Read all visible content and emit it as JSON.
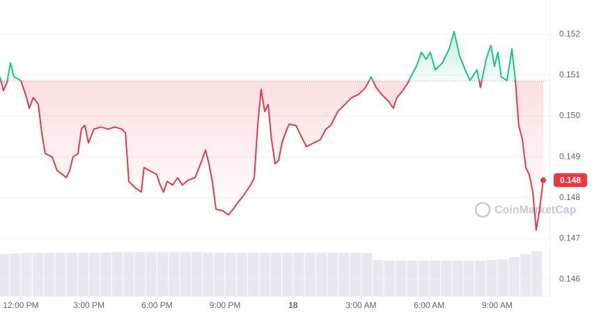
{
  "chart_data": {
    "type": "line",
    "xlim": [
      11.08,
      35.03
    ],
    "xticks": [
      {
        "value": 12,
        "label": "12:00 PM"
      },
      {
        "value": 15,
        "label": "3:00 PM"
      },
      {
        "value": 18,
        "label": "6:00 PM"
      },
      {
        "value": 21,
        "label": "9:00 PM"
      },
      {
        "value": 24,
        "label": "18"
      },
      {
        "value": 27,
        "label": "3:00 AM"
      },
      {
        "value": 30,
        "label": "6:00 AM"
      },
      {
        "value": 33,
        "label": "9:00 AM"
      }
    ],
    "ylim": [
      0.14559,
      0.15284
    ],
    "yticks": [
      0.146,
      0.147,
      0.148,
      0.149,
      0.15,
      0.151,
      0.152
    ],
    "ytick_labels": [
      "0.146",
      "0.147",
      "0.148",
      "0.149",
      "0.150",
      "0.151",
      "0.152"
    ],
    "grid": true,
    "baseline": 0.15086,
    "up_color": "#16c784",
    "down_color": "#ea3943",
    "current_price_label": "0.148",
    "watermark": "CoinMarketCap",
    "x": [
      11.08,
      11.23,
      11.39,
      11.54,
      11.69,
      12.0,
      12.25,
      12.37,
      12.55,
      12.77,
      12.92,
      13.07,
      13.38,
      13.6,
      13.84,
      14.0,
      14.15,
      14.3,
      14.52,
      14.67,
      14.82,
      14.98,
      15.22,
      15.53,
      15.84,
      16.14,
      16.45,
      16.61,
      16.76,
      17.07,
      17.31,
      17.43,
      17.68,
      17.99,
      18.14,
      18.29,
      18.45,
      18.69,
      18.91,
      19.12,
      19.37,
      19.68,
      19.98,
      20.14,
      20.29,
      20.44,
      20.6,
      20.9,
      21.15,
      21.36,
      21.58,
      21.82,
      22.13,
      22.29,
      22.44,
      22.59,
      22.75,
      22.9,
      23.05,
      23.21,
      23.36,
      23.51,
      23.67,
      23.82,
      24.13,
      24.28,
      24.59,
      24.9,
      25.2,
      25.45,
      25.66,
      25.97,
      26.28,
      26.58,
      26.89,
      27.2,
      27.44,
      27.66,
      27.9,
      28.21,
      28.42,
      28.58,
      28.83,
      29.04,
      29.19,
      29.44,
      29.66,
      29.87,
      30.05,
      30.27,
      30.58,
      30.88,
      31.1,
      31.34,
      31.59,
      31.8,
      32.11,
      32.26,
      32.51,
      32.72,
      32.88,
      33.03,
      33.18,
      33.43,
      33.65,
      33.8,
      33.95,
      34.11,
      34.26,
      34.41,
      34.57,
      34.72,
      34.87,
      35.03
    ],
    "values": [
      0.15096,
      0.15062,
      0.15082,
      0.1513,
      0.15096,
      0.15087,
      0.15045,
      0.15019,
      0.15045,
      0.15028,
      0.14959,
      0.14908,
      0.149,
      0.14866,
      0.14857,
      0.14849,
      0.14866,
      0.149,
      0.14908,
      0.14968,
      0.14977,
      0.14934,
      0.14968,
      0.14973,
      0.14968,
      0.14973,
      0.14968,
      0.14959,
      0.1484,
      0.14823,
      0.14814,
      0.14874,
      0.14866,
      0.14857,
      0.14831,
      0.14814,
      0.1484,
      0.14831,
      0.14849,
      0.14831,
      0.14843,
      0.14849,
      0.14891,
      0.14917,
      0.14883,
      0.1484,
      0.14772,
      0.14768,
      0.14758,
      0.14772,
      0.14789,
      0.14806,
      0.14831,
      0.14849,
      0.14977,
      0.15065,
      0.15011,
      0.15028,
      0.14942,
      0.14883,
      0.14891,
      0.14934,
      0.14959,
      0.1498,
      0.14977,
      0.14959,
      0.14925,
      0.14934,
      0.14942,
      0.14968,
      0.14977,
      0.15011,
      0.15028,
      0.15045,
      0.15053,
      0.1507,
      0.15096,
      0.1507,
      0.15053,
      0.15036,
      0.15019,
      0.15045,
      0.15062,
      0.15079,
      0.15096,
      0.15122,
      0.15156,
      0.15139,
      0.15156,
      0.15113,
      0.1513,
      0.15164,
      0.15207,
      0.15147,
      0.15113,
      0.15087,
      0.15113,
      0.1507,
      0.15139,
      0.15173,
      0.15122,
      0.15156,
      0.15096,
      0.15087,
      0.15164,
      0.15087,
      0.14977,
      0.14942,
      0.14874,
      0.14857,
      0.14814,
      0.14721,
      0.14772,
      0.14843
    ],
    "volume": {
      "color": "#e6e9ee",
      "ylim": [
        0,
        100
      ],
      "x": [
        11.25,
        11.75,
        12.25,
        12.75,
        13.25,
        13.75,
        14.25,
        14.75,
        15.25,
        15.75,
        16.25,
        16.75,
        17.25,
        17.75,
        18.25,
        18.75,
        19.25,
        19.75,
        20.25,
        20.75,
        21.25,
        21.75,
        22.25,
        22.75,
        23.25,
        23.75,
        24.25,
        24.75,
        25.25,
        25.75,
        26.25,
        26.75,
        27.25,
        27.75,
        28.25,
        28.75,
        29.25,
        29.75,
        30.25,
        30.75,
        31.25,
        31.75,
        32.25,
        32.75,
        33.25,
        33.75,
        34.25,
        34.75
      ],
      "values": [
        84,
        85,
        86,
        86,
        87,
        87,
        87,
        87,
        87,
        87,
        88,
        88,
        88,
        88,
        88,
        88,
        88,
        88,
        87,
        87,
        87,
        87,
        87,
        87,
        87,
        87,
        87,
        87,
        87,
        87,
        87,
        87,
        86,
        72,
        71,
        71,
        71,
        71,
        71,
        71,
        71,
        71,
        71,
        72,
        73,
        78,
        84,
        90
      ]
    }
  }
}
